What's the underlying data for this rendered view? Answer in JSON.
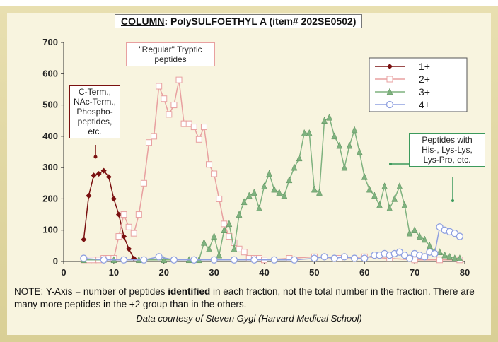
{
  "chart_data": {
    "type": "line",
    "title_label": "COLUMN",
    "title": ": PolySULFOETHYL A (item# 202SE0502)",
    "xlim": [
      0,
      80
    ],
    "ylim": [
      0,
      700
    ],
    "xticks": [
      0,
      10,
      20,
      30,
      40,
      50,
      60,
      70,
      80
    ],
    "yticks": [
      0,
      100,
      200,
      300,
      400,
      500,
      600,
      700
    ],
    "series": [
      {
        "name": "1+",
        "color": "#7a1010",
        "marker": "diamond",
        "x": [
          4,
          5,
          6,
          7,
          8,
          9,
          10,
          11,
          12,
          13,
          14
        ],
        "values": [
          70,
          210,
          275,
          280,
          290,
          270,
          200,
          150,
          80,
          40,
          10
        ]
      },
      {
        "name": "2+",
        "color": "#e8a0a0",
        "marker": "square",
        "x": [
          4,
          5,
          6,
          7,
          8,
          9,
          10,
          11,
          12,
          13,
          14,
          15,
          16,
          17,
          18,
          19,
          20,
          21,
          22,
          23,
          24,
          25,
          26,
          27,
          28,
          29,
          30,
          31,
          32,
          33,
          34,
          35,
          36,
          37,
          38,
          39,
          40,
          45,
          50,
          55,
          60,
          65,
          70,
          75,
          79
        ],
        "values": [
          5,
          5,
          5,
          5,
          10,
          10,
          10,
          80,
          150,
          110,
          90,
          150,
          250,
          380,
          400,
          560,
          520,
          470,
          500,
          580,
          440,
          440,
          430,
          390,
          430,
          310,
          280,
          200,
          120,
          80,
          60,
          40,
          30,
          10,
          10,
          10,
          5,
          10,
          15,
          10,
          15,
          10,
          5,
          5,
          5
        ]
      },
      {
        "name": "3+",
        "color": "#7fb27f",
        "marker": "triangle",
        "x": [
          4,
          10,
          15,
          20,
          25,
          27,
          28,
          29,
          30,
          31,
          32,
          33,
          34,
          35,
          36,
          37,
          38,
          39,
          40,
          41,
          42,
          43,
          44,
          45,
          46,
          47,
          48,
          49,
          50,
          51,
          52,
          53,
          54,
          55,
          56,
          57,
          58,
          59,
          60,
          61,
          62,
          63,
          64,
          65,
          66,
          67,
          68,
          69,
          70,
          71,
          72,
          73,
          74,
          75,
          76,
          77,
          78,
          79
        ],
        "values": [
          5,
          5,
          5,
          5,
          5,
          5,
          60,
          40,
          80,
          20,
          100,
          120,
          40,
          150,
          190,
          210,
          220,
          170,
          240,
          280,
          230,
          220,
          210,
          260,
          300,
          330,
          410,
          410,
          230,
          220,
          450,
          460,
          400,
          370,
          300,
          370,
          420,
          350,
          270,
          230,
          210,
          180,
          240,
          170,
          200,
          240,
          180,
          90,
          100,
          80,
          70,
          50,
          30,
          30,
          20,
          15,
          10,
          10
        ]
      },
      {
        "name": "4+",
        "color": "#8fa0e0",
        "marker": "circle",
        "x": [
          4,
          8,
          12,
          16,
          19,
          22,
          26,
          30,
          34,
          38,
          42,
          46,
          50,
          52,
          54,
          56,
          58,
          60,
          62,
          63,
          64,
          65,
          66,
          67,
          68,
          69,
          70,
          71,
          72,
          73,
          74,
          75,
          76,
          77,
          78,
          79
        ],
        "values": [
          10,
          5,
          5,
          5,
          15,
          5,
          5,
          5,
          5,
          5,
          5,
          5,
          10,
          15,
          10,
          15,
          10,
          10,
          20,
          20,
          25,
          20,
          25,
          30,
          20,
          10,
          25,
          20,
          15,
          30,
          25,
          110,
          100,
          95,
          90,
          80
        ]
      }
    ],
    "legend": "top-right",
    "annotations": [
      {
        "lines": [
          "\"Regular\" Tryptic",
          "peptides"
        ]
      },
      {
        "lines": [
          "C-Term.,",
          "NAc-Term.,",
          "Phospho-",
          "peptides,",
          "etc."
        ]
      },
      {
        "lines": [
          "Peptides with",
          "His-, Lys-Lys,",
          "Lys-Pro, etc."
        ]
      }
    ],
    "note": [
      "NOTE: Y-Axis = number of peptides ",
      "identified",
      " in each fraction, not the total number in the fraction.  There are many more peptides in the +2 group than in the others."
    ],
    "credit": "- Data courtesy of Steven Gygi (Harvard Medical School) -"
  }
}
